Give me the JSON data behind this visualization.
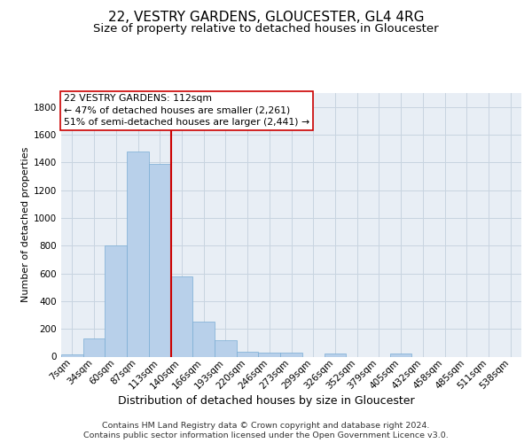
{
  "title": "22, VESTRY GARDENS, GLOUCESTER, GL4 4RG",
  "subtitle": "Size of property relative to detached houses in Gloucester",
  "xlabel": "Distribution of detached houses by size in Gloucester",
  "ylabel": "Number of detached properties",
  "footer_line1": "Contains HM Land Registry data © Crown copyright and database right 2024.",
  "footer_line2": "Contains public sector information licensed under the Open Government Licence v3.0.",
  "categories": [
    "7sqm",
    "34sqm",
    "60sqm",
    "87sqm",
    "113sqm",
    "140sqm",
    "166sqm",
    "193sqm",
    "220sqm",
    "246sqm",
    "273sqm",
    "299sqm",
    "326sqm",
    "352sqm",
    "379sqm",
    "405sqm",
    "432sqm",
    "458sqm",
    "485sqm",
    "511sqm",
    "538sqm"
  ],
  "values": [
    15,
    130,
    800,
    1480,
    1390,
    575,
    250,
    115,
    35,
    30,
    30,
    0,
    20,
    0,
    0,
    20,
    0,
    0,
    0,
    0,
    0
  ],
  "bar_color": "#b8d0ea",
  "bar_edge_color": "#7aadd4",
  "vline_x": 4.5,
  "vline_color": "#cc0000",
  "annotation_text": "22 VESTRY GARDENS: 112sqm\n← 47% of detached houses are smaller (2,261)\n51% of semi-detached houses are larger (2,441) →",
  "annotation_box_color": "#ffffff",
  "annotation_box_edge_color": "#cc0000",
  "ylim": [
    0,
    1900
  ],
  "yticks": [
    0,
    200,
    400,
    600,
    800,
    1000,
    1200,
    1400,
    1600,
    1800
  ],
  "background_color": "#e8eef5",
  "grid_color": "#c8d4e0",
  "title_fontsize": 11,
  "subtitle_fontsize": 9.5,
  "xlabel_fontsize": 9,
  "ylabel_fontsize": 8,
  "tick_fontsize": 7.5,
  "annotation_fontsize": 7.8,
  "footer_fontsize": 6.8
}
